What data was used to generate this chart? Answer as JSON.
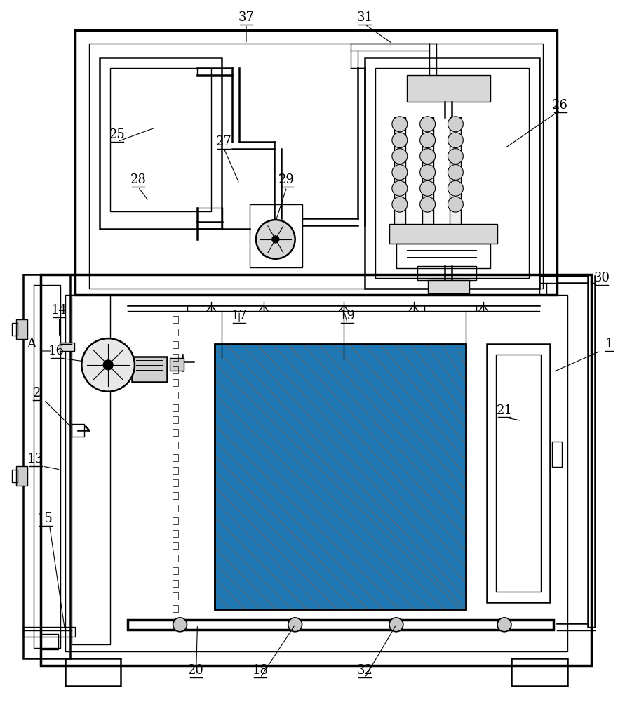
{
  "bg_color": "#ffffff",
  "lc": "#000000",
  "figsize": [
    9.01,
    10.0
  ],
  "dpi": 100,
  "lw_thick": 2.5,
  "lw_med": 1.8,
  "lw_thin": 1.0,
  "lw_vthin": 0.7
}
